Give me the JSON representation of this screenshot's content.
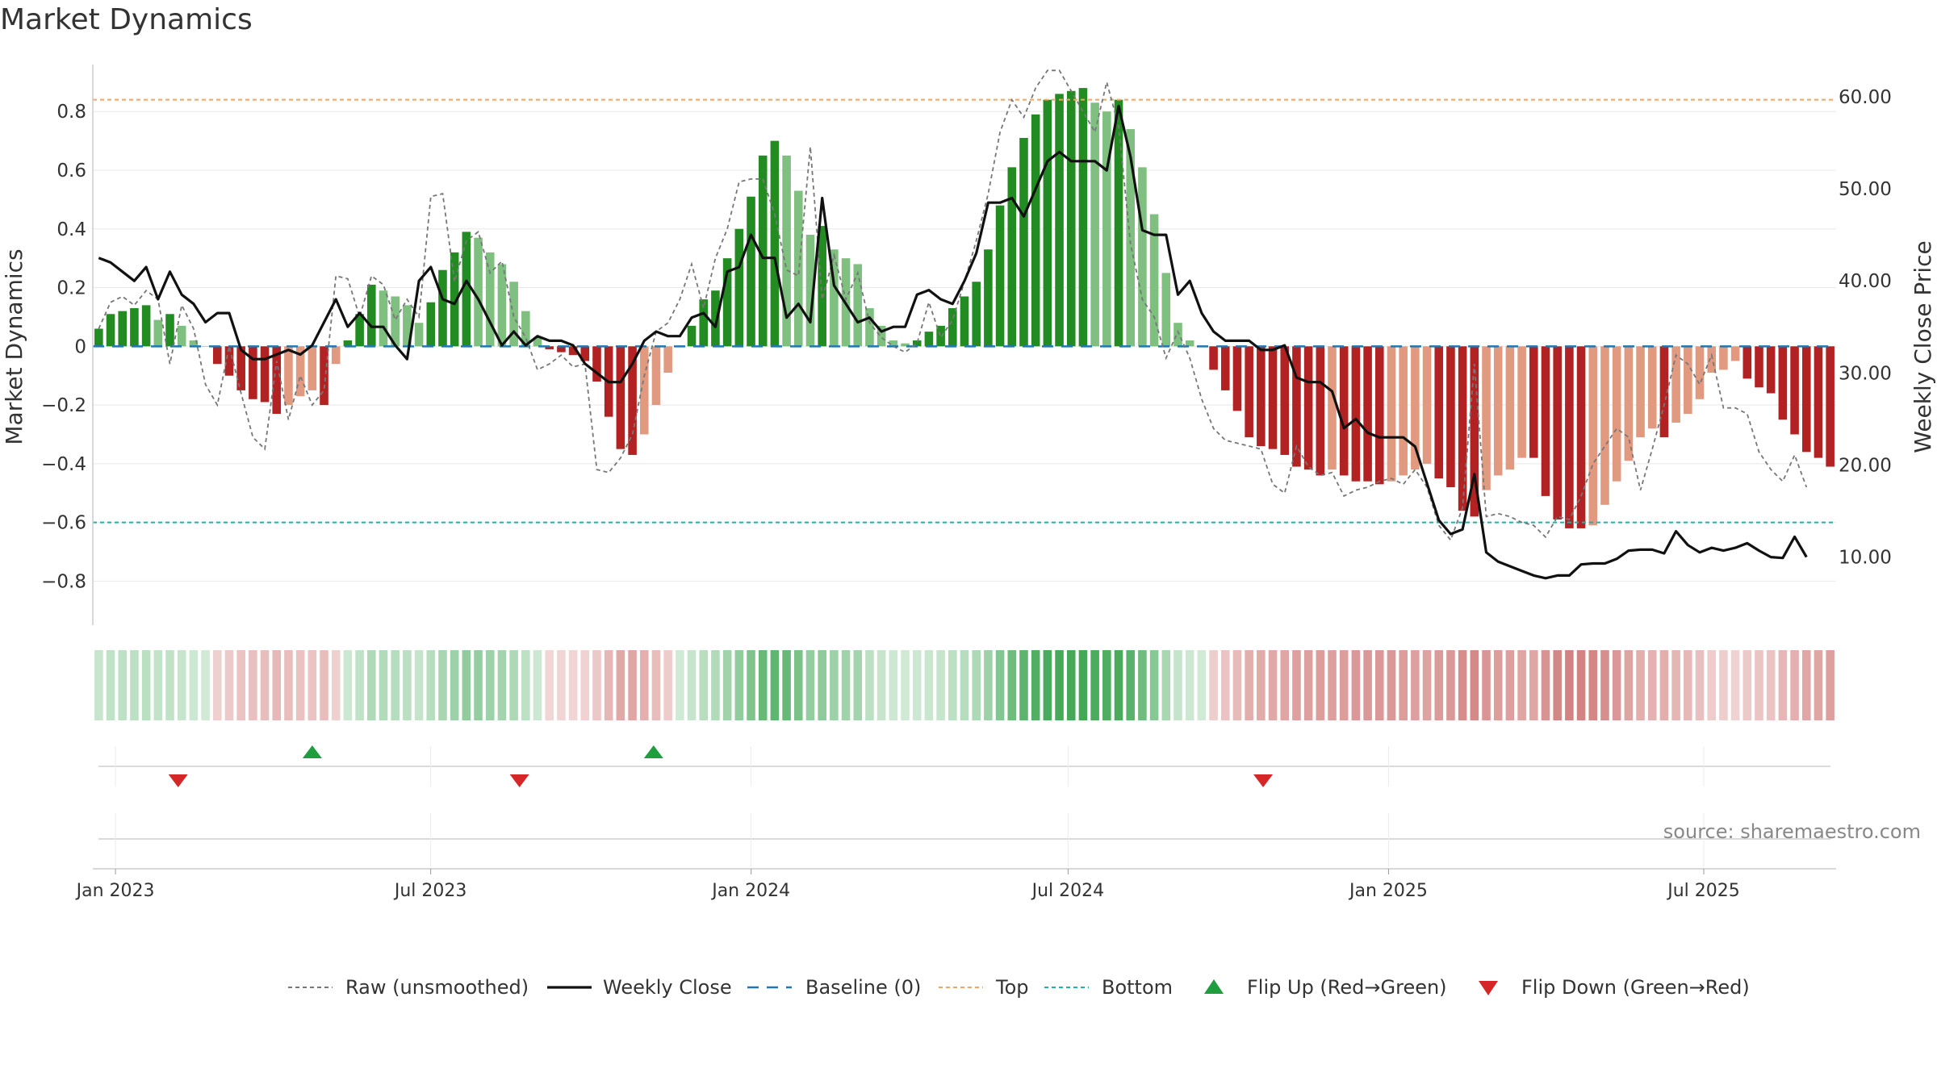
{
  "chart_data": {
    "type": "bar",
    "title": "Market Dynamics",
    "ylabel": "Market Dynamics",
    "y2label": "Weekly Close Price",
    "ylim": [
      -0.95,
      0.96
    ],
    "y2lim": [
      2.6,
      63.5
    ],
    "yticks": [
      0.8,
      0.6,
      0.4,
      0.2,
      0,
      -0.2,
      -0.4,
      -0.6,
      -0.8
    ],
    "yticks_text": [
      "0.8",
      "0.6",
      "0.4",
      "0.2",
      "0",
      "−0.2",
      "−0.4",
      "−0.6",
      "−0.8"
    ],
    "y2ticks": [
      60,
      50,
      40,
      30,
      20,
      10
    ],
    "y2ticks_text": [
      "60.00",
      "50.00",
      "40.00",
      "30.00",
      "20.00",
      "10.00"
    ],
    "x_start": "2022-12-19",
    "x_end": "2025-09-15",
    "x_ticks": [
      {
        "date": "2023-01-01",
        "label": "Jan 2023"
      },
      {
        "date": "2023-07-01",
        "label": "Jul 2023"
      },
      {
        "date": "2024-01-01",
        "label": "Jan 2024"
      },
      {
        "date": "2024-07-01",
        "label": "Jul 2024"
      },
      {
        "date": "2025-01-01",
        "label": "Jan 2025"
      },
      {
        "date": "2025-07-01",
        "label": "Jul 2025"
      }
    ],
    "top_level": 0.84,
    "bottom_level": -0.6,
    "baseline": 0,
    "series": [
      {
        "name": "Market Dynamics (smoothed)",
        "values": [
          0.06,
          0.11,
          0.12,
          0.13,
          0.14,
          0.09,
          0.11,
          0.07,
          0.02,
          0,
          -0.06,
          -0.1,
          -0.15,
          -0.18,
          -0.19,
          -0.23,
          -0.2,
          -0.17,
          -0.15,
          -0.2,
          -0.06,
          0.02,
          0.11,
          0.21,
          0.19,
          0.17,
          0.14,
          0.08,
          0.15,
          0.26,
          0.32,
          0.39,
          0.37,
          0.32,
          0.28,
          0.22,
          0.12,
          0.03,
          -0.01,
          -0.02,
          -0.03,
          -0.05,
          -0.12,
          -0.24,
          -0.35,
          -0.37,
          -0.3,
          -0.2,
          -0.09,
          0,
          0.07,
          0.16,
          0.19,
          0.3,
          0.4,
          0.51,
          0.65,
          0.7,
          0.65,
          0.53,
          0.38,
          0.41,
          0.33,
          0.3,
          0.28,
          0.13,
          0.07,
          0.02,
          0.01,
          0.02,
          0.05,
          0.07,
          0.13,
          0.17,
          0.22,
          0.33,
          0.48,
          0.61,
          0.71,
          0.79,
          0.84,
          0.86,
          0.87,
          0.88,
          0.83,
          0.8,
          0.84,
          0.74,
          0.61,
          0.45,
          0.25,
          0.08,
          0.02,
          0,
          -0.08,
          -0.15,
          -0.22,
          -0.31,
          -0.34,
          -0.35,
          -0.37,
          -0.41,
          -0.42,
          -0.44,
          -0.42,
          -0.44,
          -0.46,
          -0.46,
          -0.47,
          -0.46,
          -0.44,
          -0.42,
          -0.4,
          -0.45,
          -0.48,
          -0.56,
          -0.58,
          -0.49,
          -0.44,
          -0.42,
          -0.38,
          -0.38,
          -0.51,
          -0.59,
          -0.62,
          -0.62,
          -0.61,
          -0.54,
          -0.46,
          -0.39,
          -0.31,
          -0.28,
          -0.31,
          -0.26,
          -0.23,
          -0.18,
          -0.09,
          -0.08,
          -0.05,
          -0.11,
          -0.14,
          -0.16,
          -0.25,
          -0.3,
          -0.36,
          -0.38,
          -0.41
        ]
      },
      {
        "name": "Raw (unsmoothed)",
        "values": [
          0.06,
          0.15,
          0.17,
          0.14,
          0.19,
          0.16,
          -0.06,
          0.14,
          0.06,
          -0.13,
          -0.2,
          0.0,
          -0.16,
          -0.31,
          -0.35,
          -0.05,
          -0.25,
          -0.1,
          -0.2,
          -0.15,
          0.24,
          0.23,
          0.1,
          0.24,
          0.21,
          0.09,
          0.16,
          0.1,
          0.51,
          0.52,
          0.22,
          0.36,
          0.39,
          0.25,
          0.29,
          0.1,
          0.03,
          -0.08,
          -0.06,
          -0.03,
          -0.07,
          -0.06,
          -0.42,
          -0.43,
          -0.38,
          -0.3,
          -0.1,
          0.05,
          0.08,
          0.16,
          0.28,
          0.13,
          0.3,
          0.4,
          0.56,
          0.57,
          0.57,
          0.45,
          0.26,
          0.24,
          0.68,
          0.16,
          0.31,
          0.16,
          0.25,
          0.08,
          0.03,
          0.0,
          -0.02,
          0.01,
          0.15,
          0.03,
          0.09,
          0.22,
          0.36,
          0.52,
          0.73,
          0.84,
          0.78,
          0.88,
          0.94,
          0.94,
          0.87,
          0.8,
          0.73,
          0.9,
          0.75,
          0.35,
          0.16,
          0.1,
          -0.04,
          0.05,
          -0.04,
          -0.18,
          -0.28,
          -0.32,
          -0.33,
          -0.34,
          -0.35,
          -0.47,
          -0.5,
          -0.34,
          -0.41,
          -0.44,
          -0.43,
          -0.51,
          -0.49,
          -0.48,
          -0.46,
          -0.45,
          -0.47,
          -0.42,
          -0.48,
          -0.61,
          -0.66,
          -0.55,
          -0.06,
          -0.58,
          -0.57,
          -0.58,
          -0.6,
          -0.61,
          -0.65,
          -0.58,
          -0.59,
          -0.51,
          -0.4,
          -0.34,
          -0.28,
          -0.31,
          -0.49,
          -0.35,
          -0.2,
          -0.03,
          -0.06,
          -0.13,
          -0.03,
          -0.21,
          -0.21,
          -0.23,
          -0.36,
          -0.42,
          -0.46,
          -0.37,
          -0.48
        ]
      },
      {
        "name": "Weekly Close",
        "values": [
          42.5,
          42.0,
          41.0,
          40.0,
          41.5,
          38.0,
          41.0,
          38.5,
          37.5,
          35.5,
          36.5,
          36.5,
          32.5,
          31.5,
          31.5,
          32.0,
          32.5,
          32.0,
          33.0,
          35.5,
          38.0,
          35.0,
          36.5,
          35.0,
          35.0,
          33.0,
          31.5,
          40.0,
          41.5,
          38.0,
          37.5,
          40.0,
          38.0,
          35.5,
          33.0,
          34.5,
          33.0,
          34.0,
          33.5,
          33.5,
          33.0,
          31.0,
          30.0,
          29.0,
          29.0,
          31.0,
          33.5,
          34.5,
          34.0,
          34.0,
          36.0,
          36.5,
          35.0,
          41.0,
          41.5,
          45.0,
          42.5,
          42.5,
          36.0,
          37.5,
          35.5,
          49.0,
          39.5,
          37.5,
          35.5,
          36.0,
          34.5,
          35.0,
          35.0,
          38.5,
          39.0,
          38.0,
          37.5,
          40.0,
          43.0,
          48.5,
          48.5,
          49.0,
          47.0,
          50.0,
          53.0,
          54.0,
          53.0,
          53.0,
          53.0,
          52.0,
          59.0,
          53.5,
          45.5,
          45.0,
          45.0,
          38.5,
          40.0,
          36.5,
          34.5,
          33.5,
          33.5,
          33.5,
          32.5,
          32.5,
          33.0,
          29.5,
          29.0,
          29.0,
          28.0,
          24.0,
          25.0,
          23.5,
          23.0,
          23.0,
          23.0,
          22.0,
          18.0,
          14.0,
          12.5,
          13.0,
          19.0,
          10.5,
          9.5,
          9.0,
          8.5,
          8.0,
          7.7,
          8.0,
          8.0,
          9.2,
          9.3,
          9.3,
          9.8,
          10.7,
          10.8,
          10.8,
          10.4,
          12.8,
          11.3,
          10.5,
          11.0,
          10.7,
          11.0,
          11.5,
          10.7,
          10.0,
          9.9,
          12.2,
          10.0
        ]
      }
    ],
    "flips": [
      {
        "type": "down",
        "date": "2023-02-06"
      },
      {
        "type": "up",
        "date": "2023-04-24"
      },
      {
        "type": "down",
        "date": "2023-08-21"
      },
      {
        "type": "up",
        "date": "2023-11-06"
      },
      {
        "type": "down",
        "date": "2024-10-21"
      }
    ],
    "colors": {
      "bull_strong": "#228B22",
      "bull_weak": "#7FBF7F",
      "bear_strong": "#B22222",
      "bear_weak": "#E19A80",
      "raw": "#777777",
      "close": "#111111",
      "baseline": "#1F77B4",
      "top": "#F4A460",
      "bottom": "#20B2AA",
      "flip_up": "#1E9E3E",
      "flip_down": "#D62728",
      "heat_green": "#2E9E44",
      "heat_red": "#C0504D"
    },
    "legend": [
      {
        "label": "Raw (unsmoothed)",
        "style": "dotted-gray"
      },
      {
        "label": "Weekly Close",
        "style": "solid-black"
      },
      {
        "label": "Baseline (0)",
        "style": "dashed-blue"
      },
      {
        "label": "Top",
        "style": "dotted-orange"
      },
      {
        "label": "Bottom",
        "style": "dotted-teal"
      },
      {
        "label": "Flip Up (Red→Green)",
        "style": "triangle-up"
      },
      {
        "label": "Flip Down (Green→Red)",
        "style": "triangle-down"
      }
    ],
    "legend_position": "bottom",
    "source": "source: sharemaestro.com"
  }
}
